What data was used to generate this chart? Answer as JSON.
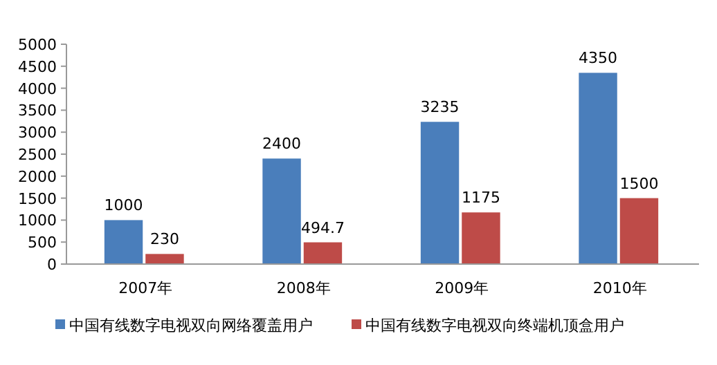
{
  "chart_data": {
    "type": "bar",
    "categories": [
      "2007年",
      "2008年",
      "2009年",
      "2010年"
    ],
    "series": [
      {
        "name": "中国有线数字电视双向网络覆盖用户",
        "color": "#4a7ebb",
        "values": [
          1000,
          2400,
          3235,
          4350
        ]
      },
      {
        "name": "中国有线数字电视双向终端机顶盒用户",
        "color": "#be4b48",
        "values": [
          230,
          494.7,
          1175,
          1500
        ]
      }
    ],
    "ylim": [
      0,
      5000
    ],
    "yticks": [
      0,
      500,
      1000,
      1500,
      2000,
      2500,
      3000,
      3500,
      4000,
      4500,
      5000
    ],
    "data_labels": true,
    "grid": false,
    "legend": "bottom"
  }
}
